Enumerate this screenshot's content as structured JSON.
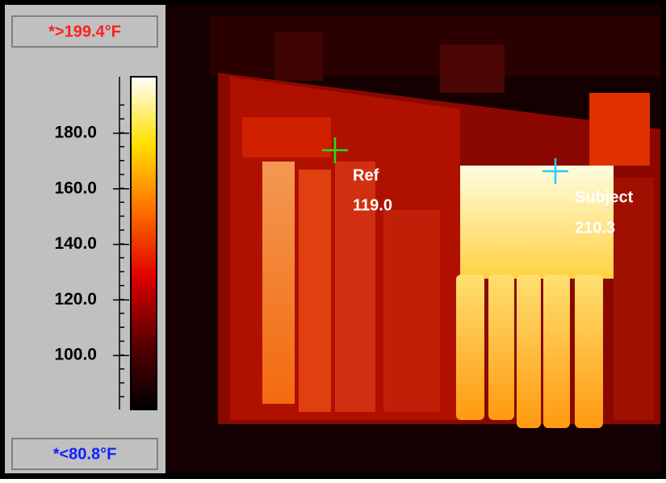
{
  "scale": {
    "max_label": "*>199.4°F",
    "min_label": "*<80.8°F",
    "ticks": [
      "180.0",
      "160.0",
      "140.0",
      "120.0",
      "100.0"
    ]
  },
  "markers": [
    {
      "label": "Ref",
      "value": "119.0"
    },
    {
      "label": "Subject",
      "value": "210.3"
    }
  ]
}
